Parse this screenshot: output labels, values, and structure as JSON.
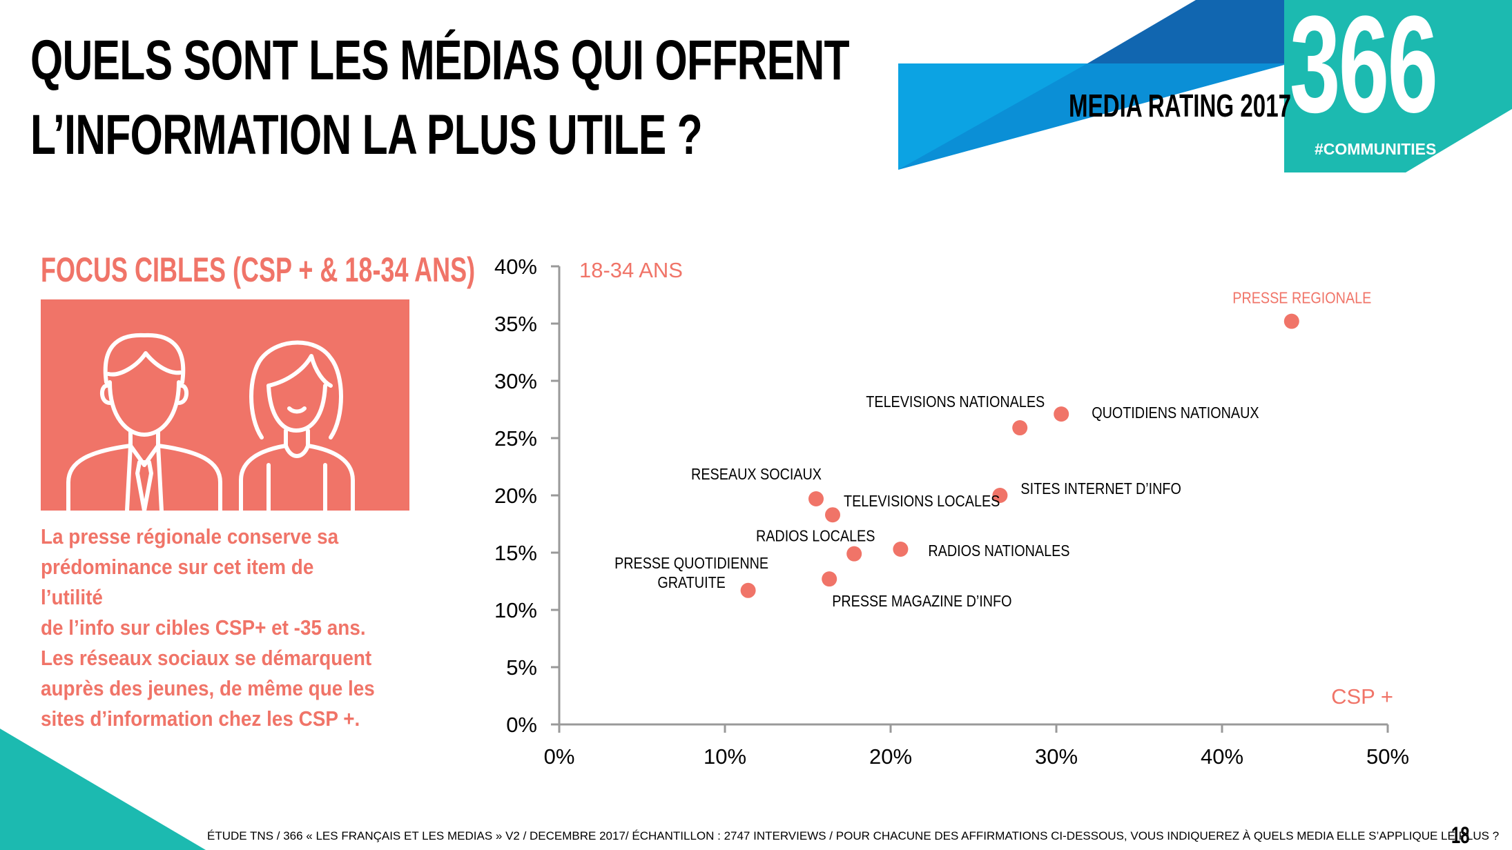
{
  "title": {
    "line1": "QUELS SONT LES MÉDIAS QUI OFFRENT",
    "line2": "L’INFORMATION LA PLUS UTILE ?"
  },
  "brand": {
    "media_rating": "MEDIA RATING 2017",
    "logo_number": "366",
    "logo_tag": "#COMMUNITIES"
  },
  "focus": {
    "title": "FOCUS CIBLES (CSP + & 18-34 ANS)",
    "text_lines": [
      "La presse régionale conserve sa",
      "prédominance sur cet  item de l’utilité",
      "de l’info sur cibles CSP+ et -35 ans.",
      "Les réseaux sociaux se démarquent",
      "auprès des jeunes, de même que les",
      "sites d’information chez les CSP +."
    ]
  },
  "chart_data": {
    "type": "scatter",
    "title": "",
    "xlabel": "CSP +",
    "ylabel": "18-34 ANS",
    "xlim": [
      0,
      50
    ],
    "ylim": [
      0,
      40
    ],
    "x_ticks": [
      "0%",
      "10%",
      "20%",
      "30%",
      "40%",
      "50%"
    ],
    "y_ticks": [
      "0%",
      "5%",
      "10%",
      "15%",
      "20%",
      "25%",
      "30%",
      "35%",
      "40%"
    ],
    "points": [
      {
        "label": "PRESSE REGIONALE",
        "x": 44.2,
        "y": 35.2
      },
      {
        "label": "QUOTIDIENS NATIONAUX",
        "x": 30.3,
        "y": 27.1
      },
      {
        "label": "TELEVISIONS NATIONALES",
        "x": 27.8,
        "y": 25.9
      },
      {
        "label": "SITES INTERNET D’INFO",
        "x": 26.6,
        "y": 20.0
      },
      {
        "label": "RESEAUX SOCIAUX",
        "x": 15.5,
        "y": 19.7
      },
      {
        "label": "TELEVISIONS LOCALES",
        "x": 16.5,
        "y": 18.3
      },
      {
        "label": "RADIOS NATIONALES",
        "x": 20.6,
        "y": 15.3
      },
      {
        "label": "RADIOS LOCALES",
        "x": 17.8,
        "y": 14.9
      },
      {
        "label": "PRESSE MAGAZINE D’INFO",
        "x": 16.3,
        "y": 12.7
      },
      {
        "label": "PRESSE QUOTIDIENNE GRATUITE",
        "x": 11.4,
        "y": 11.7
      }
    ],
    "marker_color": "#f07468",
    "grid": false
  },
  "footer": {
    "source": "ÉTUDE TNS / 366 « LES FRANÇAIS ET LES MEDIAS » V2 / DECEMBRE 2017/ ÉCHANTILLON : 2747 INTERVIEWS / POUR CHACUNE DES AFFIRMATIONS CI-DESSOUS, VOUS INDIQUEREZ À QUELS MEDIA ELLE S’APPLIQUE LE PLUS ?",
    "page": "18"
  },
  "colors": {
    "coral": "#f07468",
    "teal": "#1cbab0",
    "light_blue": "#0ca3e3",
    "dark_blue": "#1166b0"
  }
}
